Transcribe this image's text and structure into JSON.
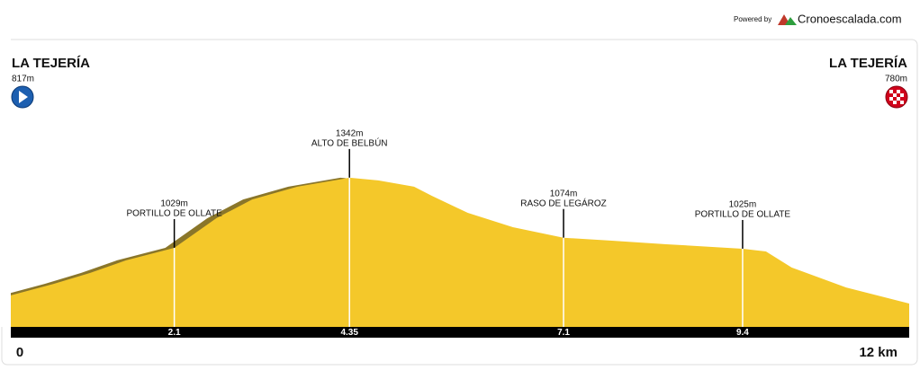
{
  "chart_data": {
    "type": "area",
    "powered_by": "Powered by",
    "brand": "Cronoescalada.com",
    "start": {
      "name": "LA TEJERÍA",
      "elevation": 817,
      "elevation_label": "817m"
    },
    "end": {
      "name": "LA TEJERÍA",
      "elevation": 780,
      "elevation_label": "780m"
    },
    "x": [
      0,
      0.55,
      1.02,
      1.48,
      2.1,
      2.64,
      3.1,
      3.68,
      4.35,
      4.72,
      5.18,
      5.41,
      5.87,
      6.45,
      7.1,
      7.72,
      8.42,
      9.4,
      9.7,
      10.03,
      10.73,
      11.54
    ],
    "values": [
      817,
      868,
      917,
      973,
      1029,
      1161,
      1245,
      1302,
      1342,
      1330,
      1302,
      1261,
      1185,
      1121,
      1074,
      1061,
      1045,
      1025,
      1013,
      941,
      852,
      780
    ],
    "color": "#f4c82a",
    "shade_color": "#8a762a",
    "xlim": [
      0,
      11.54
    ],
    "ylim": [
      676,
      1975
    ],
    "xticks": [
      0,
      2.1,
      4.35,
      7.1,
      9.4,
      {
        "value": 12,
        "label": "12 km"
      }
    ],
    "waypoints": [
      {
        "km": 2.1,
        "elevation": 1029,
        "elevation_label": "1029m",
        "name": "PORTILLO DE OLLATE"
      },
      {
        "km": 4.35,
        "elevation": 1342,
        "elevation_label": "1342m",
        "name": "ALTO DE BELBÚN"
      },
      {
        "km": 7.1,
        "elevation": 1074,
        "elevation_label": "1074m",
        "name": "RASO DE LEGÁROZ"
      },
      {
        "km": 9.4,
        "elevation": 1025,
        "elevation_label": "1025m",
        "name": "PORTILLO DE OLLATE"
      }
    ]
  }
}
